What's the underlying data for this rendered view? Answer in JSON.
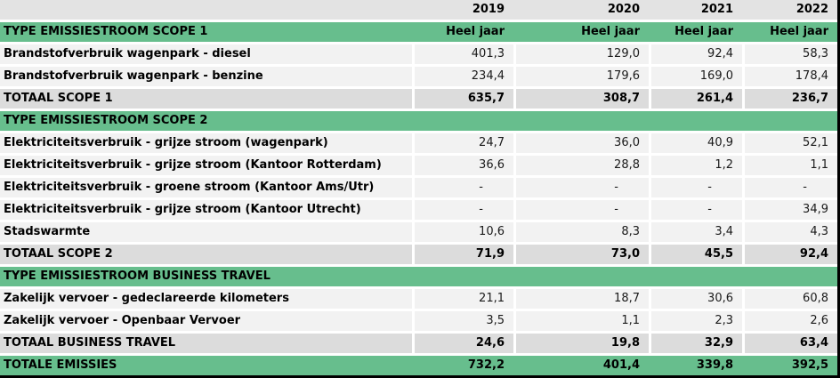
{
  "table": {
    "year_columns": [
      "2019",
      "2020",
      "2021",
      "2022"
    ],
    "period_subheader": "Heel jaar",
    "rows": [
      {
        "kind": "years",
        "label": "",
        "values": [
          "2019",
          "2020",
          "2021",
          "2022"
        ]
      },
      {
        "kind": "section",
        "label": "TYPE EMISSIESTROOM SCOPE 1",
        "values": [
          "Heel jaar",
          "Heel jaar",
          "Heel jaar",
          "Heel jaar"
        ]
      },
      {
        "kind": "data",
        "label": "Brandstofverbruik wagenpark - diesel",
        "values": [
          "401,3",
          "129,0",
          "92,4",
          "58,3"
        ]
      },
      {
        "kind": "data",
        "label": "Brandstofverbruik wagenpark - benzine",
        "values": [
          "234,4",
          "179,6",
          "169,0",
          "178,4"
        ]
      },
      {
        "kind": "total",
        "label": "TOTAAL SCOPE 1",
        "values": [
          "635,7",
          "308,7",
          "261,4",
          "236,7"
        ]
      },
      {
        "kind": "section",
        "label": "TYPE EMISSIESTROOM SCOPE 2",
        "values": [
          "",
          "",
          "",
          ""
        ]
      },
      {
        "kind": "data",
        "label": "Elektriciteitsverbruik - grijze stroom (wagenpark)",
        "values": [
          "24,7",
          "36,0",
          "40,9",
          "52,1"
        ]
      },
      {
        "kind": "data",
        "label": "Elektriciteitsverbruik - grijze stroom (Kantoor Rotterdam)",
        "values": [
          "36,6",
          "28,8",
          "1,2",
          "1,1"
        ]
      },
      {
        "kind": "data",
        "label": "Elektriciteitsverbruik - groene stroom (Kantoor Ams/Utr)",
        "values": [
          "-",
          "-",
          "-",
          "-"
        ]
      },
      {
        "kind": "data",
        "label": "Elektriciteitsverbruik - grijze stroom (Kantoor Utrecht)",
        "values": [
          "-",
          "-",
          "-",
          "34,9"
        ]
      },
      {
        "kind": "data",
        "label": "Stadswarmte",
        "values": [
          "10,6",
          "8,3",
          "3,4",
          "4,3"
        ]
      },
      {
        "kind": "total",
        "label": "TOTAAL SCOPE 2",
        "values": [
          "71,9",
          "73,0",
          "45,5",
          "92,4"
        ]
      },
      {
        "kind": "section",
        "label": "TYPE EMISSIESTROOM BUSINESS TRAVEL",
        "values": [
          "",
          "",
          "",
          ""
        ]
      },
      {
        "kind": "data",
        "label": "Zakelijk vervoer - gedeclareerde kilometers",
        "values": [
          "21,1",
          "18,7",
          "30,6",
          "60,8"
        ]
      },
      {
        "kind": "data",
        "label": "Zakelijk vervoer - Openbaar Vervoer",
        "values": [
          "3,5",
          "1,1",
          "2,3",
          "2,6"
        ]
      },
      {
        "kind": "total",
        "label": "TOTAAL BUSINESS TRAVEL",
        "values": [
          "24,6",
          "19,8",
          "32,9",
          "63,4"
        ]
      },
      {
        "kind": "grand",
        "label": "TOTALE EMISSIES",
        "values": [
          "732,2",
          "401,4",
          "339,8",
          "392,5"
        ]
      }
    ]
  },
  "colors": {
    "section_green": "#67be8d",
    "total_gray": "#dcdcdc",
    "year_header_gray": "#e3e3e3",
    "data_row_gray": "#f2f2f2",
    "separator_white": "#ffffff",
    "outer_border_black": "#000000"
  }
}
